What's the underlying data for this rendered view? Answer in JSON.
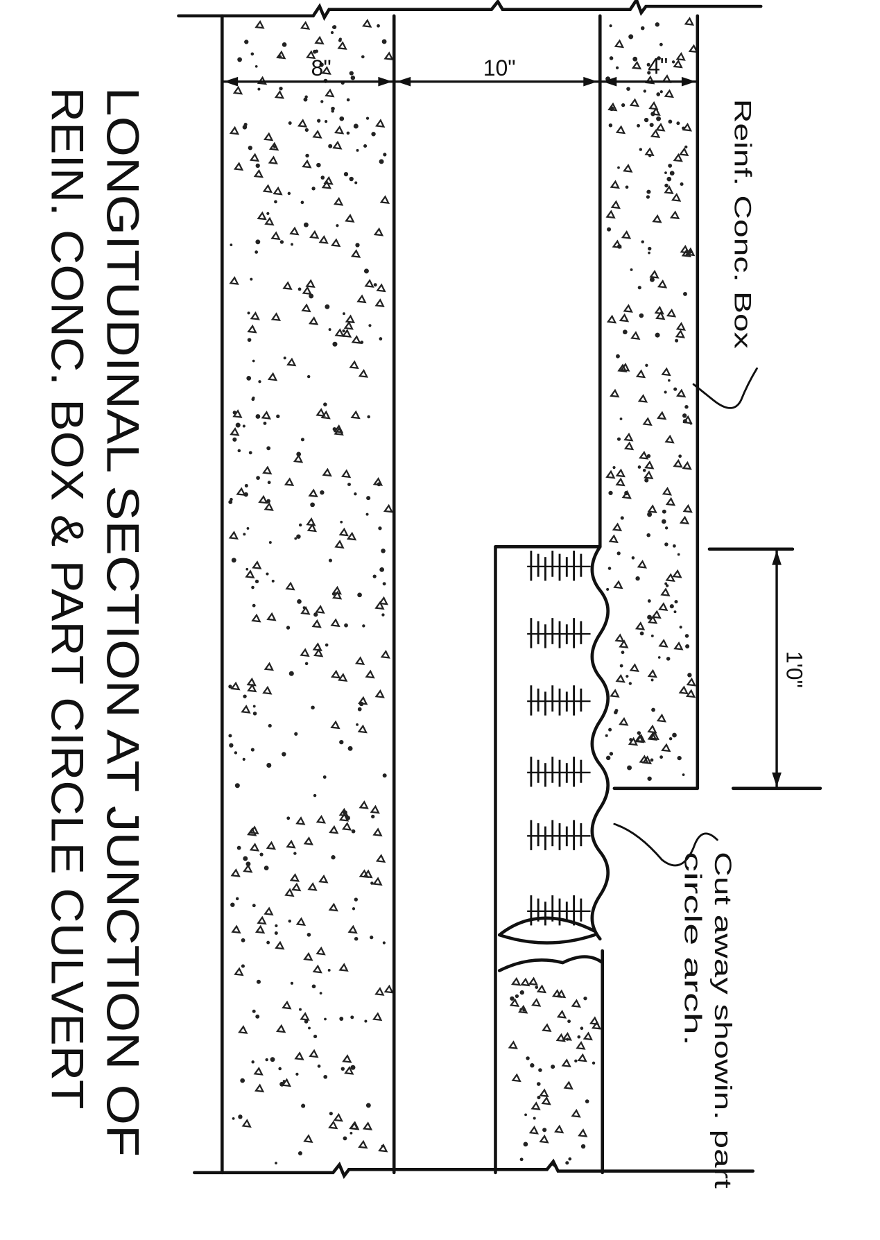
{
  "title": {
    "lines": [
      "LONGITUDINAL SECTION AT JUNCTION OF",
      "REIN. CONC. BOX & PART CIRCLE CULVERT"
    ]
  },
  "dimensions": [
    "8\"",
    "10\"",
    "4\"",
    "1'0\""
  ],
  "labels": {
    "box": "Reinf. Conc. Box",
    "arch": [
      "Cut away showin. part",
      "circle arch."
    ]
  }
}
